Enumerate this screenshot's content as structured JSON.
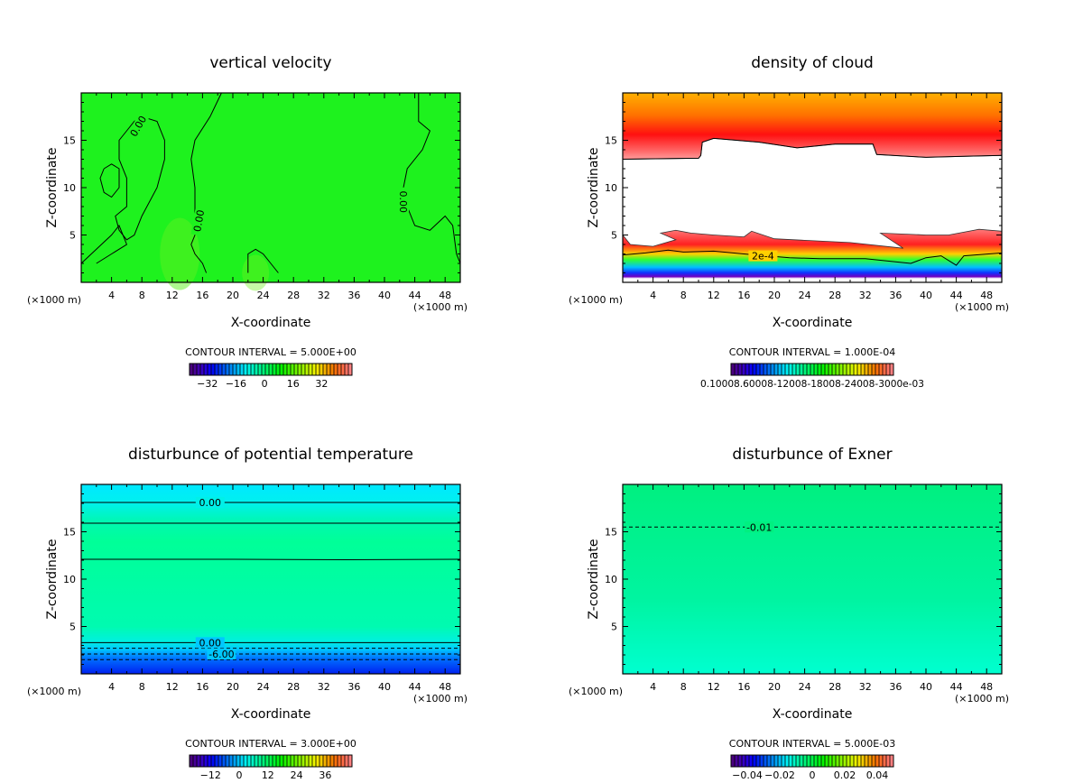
{
  "chart_data": [
    {
      "type": "heatmap",
      "title": "vertical velocity",
      "xlabel": "X-coordinate",
      "ylabel": "Z-coordinate",
      "x_unit_left": "(×1000 m)",
      "x_unit_right": "(×1000 m)",
      "xlim": [
        0,
        50
      ],
      "ylim": [
        0,
        20
      ],
      "xticks": [
        "4",
        "8",
        "12",
        "16",
        "20",
        "24",
        "28",
        "32",
        "36",
        "40",
        "44",
        "48"
      ],
      "yticks": [
        "5",
        "10",
        "15"
      ],
      "contour_interval": "CONTOUR INTERVAL = 5.000E+00",
      "colorbar": {
        "range": [
          -42,
          49
        ],
        "ticks": [
          {
            "v": -32,
            "label": "−32"
          },
          {
            "v": -16,
            "label": "−16"
          },
          {
            "v": 0,
            "label": "0"
          },
          {
            "v": 16,
            "label": "16"
          },
          {
            "v": 32,
            "label": "32"
          }
        ]
      },
      "contours": [
        {
          "dashed": false,
          "pts": [
            [
              0,
              2
            ],
            [
              2,
              3.5
            ],
            [
              4,
              5
            ],
            [
              5,
              6
            ],
            [
              6,
              4
            ],
            [
              4,
              3
            ],
            [
              2,
              2
            ]
          ]
        },
        {
          "dashed": false,
          "pts": [
            [
              3,
              12
            ],
            [
              4,
              12.5
            ],
            [
              5,
              12
            ],
            [
              5,
              10
            ],
            [
              4,
              9
            ],
            [
              3,
              9.5
            ],
            [
              2.5,
              11
            ],
            [
              3,
              12
            ]
          ]
        },
        {
          "dashed": false,
          "pts": [
            [
              6,
              16
            ],
            [
              7,
              17
            ],
            [
              8,
              17.5
            ],
            [
              10,
              17
            ],
            [
              11,
              15
            ],
            [
              11,
              13
            ],
            [
              10,
              10
            ],
            [
              8,
              7
            ],
            [
              7,
              5
            ],
            [
              6,
              4.5
            ],
            [
              5,
              5.5
            ],
            [
              4.5,
              7
            ],
            [
              6,
              8
            ],
            [
              6,
              11
            ],
            [
              5,
              13
            ],
            [
              5,
              15
            ],
            [
              6,
              16
            ]
          ]
        },
        {
          "dashed": false,
          "pts": [
            [
              18.5,
              20
            ],
            [
              17,
              17.5
            ],
            [
              15,
              15
            ],
            [
              14.5,
              13
            ],
            [
              15,
              10
            ],
            [
              15,
              7
            ],
            [
              15,
              5
            ],
            [
              14.5,
              4
            ],
            [
              15,
              3
            ],
            [
              16,
              2
            ],
            [
              16.5,
              1
            ]
          ]
        },
        {
          "dashed": false,
          "pts": [
            [
              44.5,
              20
            ],
            [
              44.5,
              17
            ],
            [
              46,
              16
            ],
            [
              45,
              14
            ],
            [
              43,
              12
            ],
            [
              42.5,
              10
            ],
            [
              43,
              8
            ],
            [
              44,
              6
            ],
            [
              46,
              5.5
            ],
            [
              48,
              7
            ],
            [
              49,
              6
            ],
            [
              49.5,
              3
            ],
            [
              50,
              2
            ]
          ]
        },
        {
          "dashed": false,
          "pts": [
            [
              22,
              1
            ],
            [
              22,
              3
            ],
            [
              23,
              3.5
            ],
            [
              24,
              3
            ],
            [
              25,
              2
            ],
            [
              26,
              1
            ]
          ]
        }
      ],
      "contour_labels": [
        {
          "x": 7.5,
          "z": 16.5,
          "text": "0.00",
          "rot": -60
        },
        {
          "x": 15.5,
          "z": 6.5,
          "text": "0.00",
          "rot": -80
        },
        {
          "x": 42.5,
          "z": 8.5,
          "text": "0.00",
          "rot": 90
        }
      ]
    },
    {
      "type": "heatmap",
      "title": "density of cloud",
      "xlabel": "X-coordinate",
      "ylabel": "Z-coordinate",
      "x_unit_left": "(×1000 m)",
      "x_unit_right": "(×1000 m)",
      "xlim": [
        0,
        50
      ],
      "ylim": [
        0,
        20
      ],
      "xticks": [
        "4",
        "8",
        "12",
        "16",
        "20",
        "24",
        "28",
        "32",
        "36",
        "40",
        "44",
        "48"
      ],
      "yticks": [
        "5",
        "10",
        "15"
      ],
      "contour_interval": "CONTOUR INTERVAL = 1.000E-04",
      "colorbar": {
        "range": [
          0,
          1
        ],
        "ticks": [],
        "overlap_label": "0.10008.60008-12008-18008-24008-3000e-03"
      },
      "contours": [
        {
          "dashed": false,
          "pts": [
            [
              0,
              13
            ],
            [
              10,
              13.1
            ],
            [
              10.3,
              13.4
            ],
            [
              10.5,
              14.8
            ],
            [
              12,
              15.2
            ],
            [
              18,
              14.8
            ],
            [
              23,
              14.2
            ],
            [
              28,
              14.6
            ],
            [
              33,
              14.6
            ],
            [
              33.5,
              13.5
            ],
            [
              40,
              13.2
            ],
            [
              45,
              13.3
            ],
            [
              50,
              13.4
            ]
          ]
        },
        {
          "dashed": false,
          "pts": [
            [
              0,
              2.9
            ],
            [
              3,
              3.1
            ],
            [
              6,
              3.4
            ],
            [
              8,
              3.2
            ],
            [
              12,
              3.3
            ],
            [
              16,
              3
            ],
            [
              22,
              2.6
            ],
            [
              26,
              2.5
            ],
            [
              32,
              2.5
            ],
            [
              38,
              2
            ],
            [
              40,
              2.6
            ],
            [
              42,
              2.8
            ],
            [
              44,
              1.8
            ],
            [
              45,
              2.8
            ],
            [
              50,
              3.1
            ]
          ]
        }
      ],
      "contour_labels": [
        {
          "x": 18.5,
          "z": 2.8,
          "text": "2e-4",
          "rot": 0
        }
      ]
    },
    {
      "type": "heatmap",
      "title": "disturbunce of potential temperature",
      "xlabel": "X-coordinate",
      "ylabel": "Z-coordinate",
      "x_unit_left": "(×1000 m)",
      "x_unit_right": "(×1000 m)",
      "xlim": [
        0,
        50
      ],
      "ylim": [
        0,
        20
      ],
      "xticks": [
        "4",
        "8",
        "12",
        "16",
        "20",
        "24",
        "28",
        "32",
        "36",
        "40",
        "44",
        "48"
      ],
      "yticks": [
        "5",
        "10",
        "15"
      ],
      "contour_interval": "CONTOUR INTERVAL = 3.000E+00",
      "colorbar": {
        "range": [
          -20.8,
          47.2
        ],
        "ticks": [
          {
            "v": -12,
            "label": "−12"
          },
          {
            "v": 0,
            "label": "0"
          },
          {
            "v": 12,
            "label": "12"
          },
          {
            "v": 24,
            "label": "24"
          },
          {
            "v": 36,
            "label": "36"
          }
        ]
      },
      "contours": [
        {
          "dashed": false,
          "pts": [
            [
              0,
              18.1
            ],
            [
              50,
              18.1
            ]
          ]
        },
        {
          "dashed": false,
          "pts": [
            [
              0,
              15.9
            ],
            [
              50,
              15.9
            ]
          ]
        },
        {
          "dashed": false,
          "pts": [
            [
              0,
              12.1
            ],
            [
              20,
              12.1
            ],
            [
              35,
              12.05
            ],
            [
              50,
              12.1
            ]
          ]
        },
        {
          "dashed": false,
          "pts": [
            [
              0,
              3.3
            ],
            [
              50,
              3.3
            ]
          ]
        },
        {
          "dashed": true,
          "pts": [
            [
              0,
              2.7
            ],
            [
              50,
              2.7
            ]
          ]
        },
        {
          "dashed": true,
          "pts": [
            [
              0,
              2.1
            ],
            [
              50,
              2.1
            ]
          ]
        },
        {
          "dashed": true,
          "pts": [
            [
              0,
              1.5
            ],
            [
              50,
              1.5
            ]
          ]
        }
      ],
      "contour_labels": [
        {
          "x": 17,
          "z": 18.1,
          "text": "0.00",
          "rot": 0
        },
        {
          "x": 17,
          "z": 3.3,
          "text": "0.00",
          "rot": 0
        },
        {
          "x": 18.5,
          "z": 2.1,
          "text": "-6.00",
          "rot": 0
        }
      ]
    },
    {
      "type": "heatmap",
      "title": "disturbunce of Exner",
      "xlabel": "X-coordinate",
      "ylabel": "Z-coordinate",
      "x_unit_left": "(×1000 m)",
      "x_unit_right": "(×1000 m)",
      "xlim": [
        0,
        50
      ],
      "ylim": [
        0,
        20
      ],
      "xticks": [
        "4",
        "8",
        "12",
        "16",
        "20",
        "24",
        "28",
        "32",
        "36",
        "40",
        "44",
        "48"
      ],
      "yticks": [
        "5",
        "10",
        "15"
      ],
      "contour_interval": "CONTOUR INTERVAL = 5.000E-03",
      "colorbar": {
        "range": [
          -0.05,
          0.05
        ],
        "ticks": [
          {
            "v": -0.04,
            "label": "−0.04"
          },
          {
            "v": -0.02,
            "label": "−0.02"
          },
          {
            "v": 0,
            "label": "0"
          },
          {
            "v": 0.02,
            "label": "0.02"
          },
          {
            "v": 0.04,
            "label": "0.04"
          }
        ]
      },
      "contours": [
        {
          "dashed": true,
          "pts": [
            [
              0,
              15.5
            ],
            [
              50,
              15.5
            ]
          ]
        }
      ],
      "contour_labels": [
        {
          "x": 18,
          "z": 15.5,
          "text": "-0.01",
          "rot": 0
        }
      ]
    }
  ]
}
